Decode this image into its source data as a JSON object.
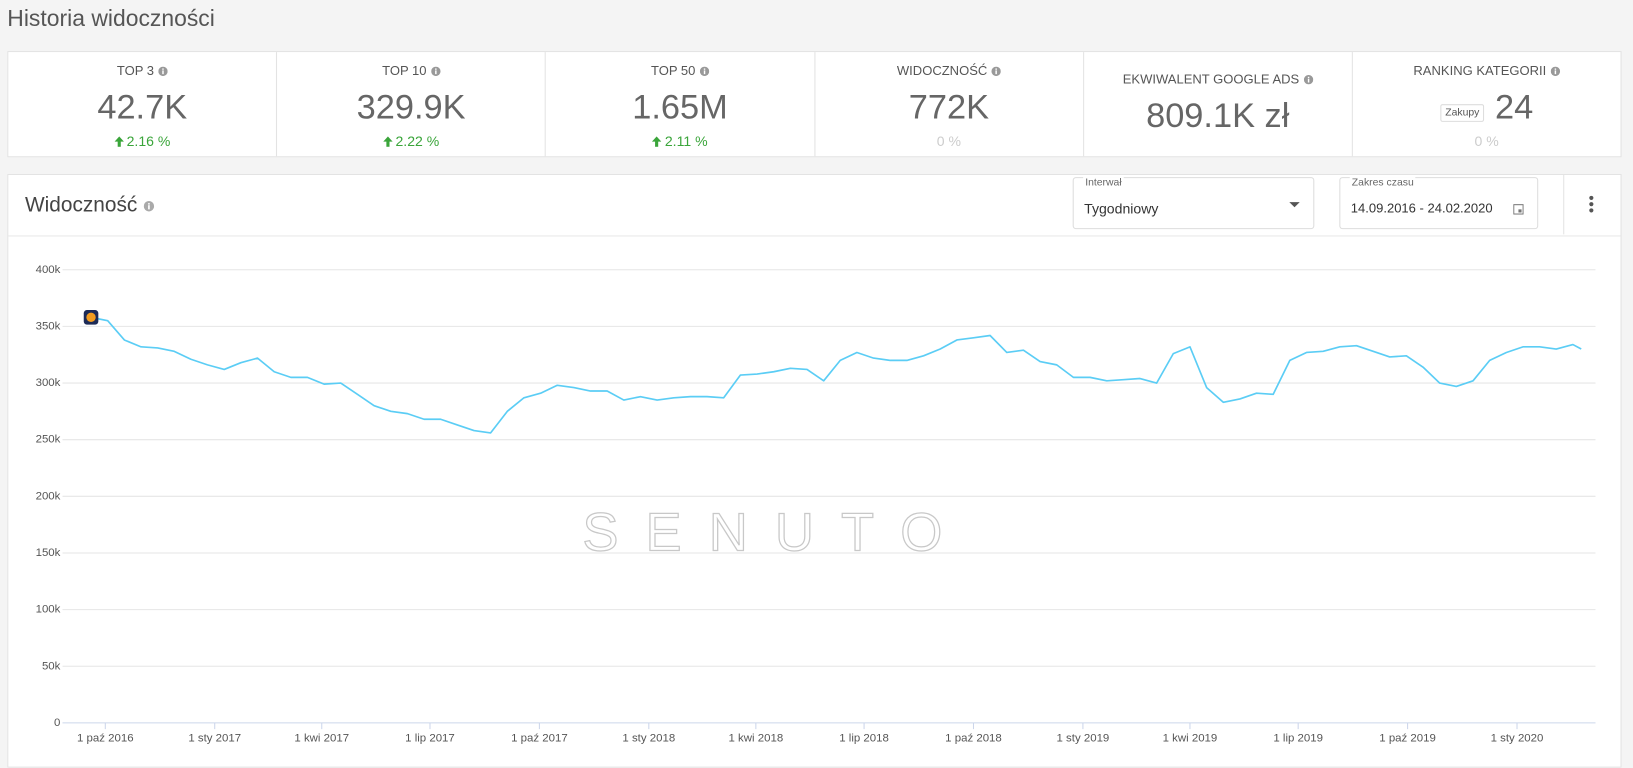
{
  "header": {
    "title": "Historia widoczności"
  },
  "stats": [
    {
      "label": "TOP 3",
      "value": "42.7K",
      "change": "2.16 %"
    },
    {
      "label": "TOP 10",
      "value": "329.9K",
      "change": "2.22 %"
    },
    {
      "label": "TOP 50",
      "value": "1.65M",
      "change": "2.11 %"
    },
    {
      "label": "WIDOCZNOŚĆ",
      "value": "772K",
      "change": "0 %"
    },
    {
      "label": "EKWIWALENT GOOGLE ADS",
      "value": "809.1K zł"
    },
    {
      "label": "RANKING KATEGORII",
      "badge": "Zakupy",
      "value": "24",
      "change": "0 %"
    }
  ],
  "panel": {
    "title": "Widoczność",
    "interval": {
      "label": "Interwał",
      "value": "Tygodniowy"
    },
    "date_range": {
      "label": "Zakres czasu",
      "value": "14.09.2016 - 24.02.2020"
    },
    "watermark": "SENUTO"
  },
  "chart_data": {
    "type": "line",
    "color": "#5bcdf5",
    "grid": true,
    "xlim": [
      "2016-08-26",
      "2020-03-07"
    ],
    "xticks": [
      {
        "value": "2016-10-01",
        "label": "1 paź 2016"
      },
      {
        "value": "2017-01-01",
        "label": "1 sty 2017"
      },
      {
        "value": "2017-04-01",
        "label": "1 kwi 2017"
      },
      {
        "value": "2017-07-01",
        "label": "1 lip 2017"
      },
      {
        "value": "2017-10-01",
        "label": "1 paź 2017"
      },
      {
        "value": "2018-01-01",
        "label": "1 sty 2018"
      },
      {
        "value": "2018-04-01",
        "label": "1 kwi 2018"
      },
      {
        "value": "2018-07-01",
        "label": "1 lip 2018"
      },
      {
        "value": "2018-10-01",
        "label": "1 paź 2018"
      },
      {
        "value": "2019-01-01",
        "label": "1 sty 2019"
      },
      {
        "value": "2019-04-01",
        "label": "1 kwi 2019"
      },
      {
        "value": "2019-07-01",
        "label": "1 lip 2019"
      },
      {
        "value": "2019-10-01",
        "label": "1 paź 2019"
      },
      {
        "value": "2020-01-01",
        "label": "1 sty 2020"
      }
    ],
    "ylim": [
      0,
      400000
    ],
    "yticks": [
      0,
      {
        "value": 50000,
        "label": "50k"
      },
      {
        "value": 100000,
        "label": "100k"
      },
      {
        "value": 150000,
        "label": "150k"
      },
      {
        "value": 200000,
        "label": "200k"
      },
      {
        "value": 250000,
        "label": "250k"
      },
      {
        "value": 300000,
        "label": "300k"
      },
      {
        "value": 350000,
        "label": "350k"
      },
      {
        "value": 400000,
        "label": "400k"
      }
    ],
    "x": [
      "2016-09-19",
      "2016-10-03",
      "2016-10-17",
      "2016-10-31",
      "2016-11-14",
      "2016-11-28",
      "2016-12-12",
      "2016-12-26",
      "2017-01-09",
      "2017-01-23",
      "2017-02-06",
      "2017-02-20",
      "2017-03-06",
      "2017-03-20",
      "2017-04-03",
      "2017-04-17",
      "2017-05-01",
      "2017-05-15",
      "2017-05-29",
      "2017-06-12",
      "2017-06-26",
      "2017-07-10",
      "2017-07-24",
      "2017-08-07",
      "2017-08-21",
      "2017-09-04",
      "2017-09-18",
      "2017-10-02",
      "2017-10-16",
      "2017-10-30",
      "2017-11-13",
      "2017-11-27",
      "2017-12-11",
      "2017-12-25",
      "2018-01-08",
      "2018-01-22",
      "2018-02-05",
      "2018-02-19",
      "2018-03-05",
      "2018-03-19",
      "2018-04-02",
      "2018-04-16",
      "2018-04-30",
      "2018-05-14",
      "2018-05-28",
      "2018-06-11",
      "2018-06-25",
      "2018-07-09",
      "2018-07-23",
      "2018-08-06",
      "2018-08-20",
      "2018-09-03",
      "2018-09-17",
      "2018-10-01",
      "2018-10-15",
      "2018-10-29",
      "2018-11-12",
      "2018-11-26",
      "2018-12-10",
      "2018-12-24",
      "2019-01-07",
      "2019-01-21",
      "2019-02-04",
      "2019-02-18",
      "2019-03-04",
      "2019-03-18",
      "2019-04-01",
      "2019-04-15",
      "2019-04-29",
      "2019-05-13",
      "2019-05-27",
      "2019-06-10",
      "2019-06-24",
      "2019-07-08",
      "2019-07-22",
      "2019-08-05",
      "2019-08-19",
      "2019-09-02",
      "2019-09-16",
      "2019-09-30",
      "2019-10-14",
      "2019-10-28",
      "2019-11-11",
      "2019-11-25",
      "2019-12-09",
      "2019-12-23",
      "2020-01-06",
      "2020-01-20",
      "2020-02-03",
      "2020-02-17",
      "2020-02-24"
    ],
    "values": [
      358000,
      355000,
      338000,
      332000,
      331000,
      328000,
      321000,
      316000,
      312000,
      318000,
      322000,
      310000,
      305000,
      305000,
      299000,
      300000,
      290000,
      280000,
      275000,
      273000,
      268000,
      268000,
      263000,
      258000,
      256000,
      275000,
      287000,
      291000,
      298000,
      296000,
      293000,
      293000,
      285000,
      288000,
      285000,
      287000,
      288000,
      288000,
      287000,
      307000,
      308000,
      310000,
      313000,
      312000,
      302000,
      320000,
      327000,
      322000,
      320000,
      320000,
      324000,
      330000,
      338000,
      340000,
      342000,
      327000,
      329000,
      319000,
      316000,
      305000,
      305000,
      302000,
      303000,
      304000,
      300000,
      326000,
      332000,
      296000,
      283000,
      286000,
      291000,
      290000,
      320000,
      327000,
      328000,
      332000,
      333000,
      328000,
      323000,
      324000,
      314000,
      300000,
      297000,
      302000,
      320000,
      327000,
      332000,
      332000,
      330000,
      334000,
      330000
    ]
  }
}
